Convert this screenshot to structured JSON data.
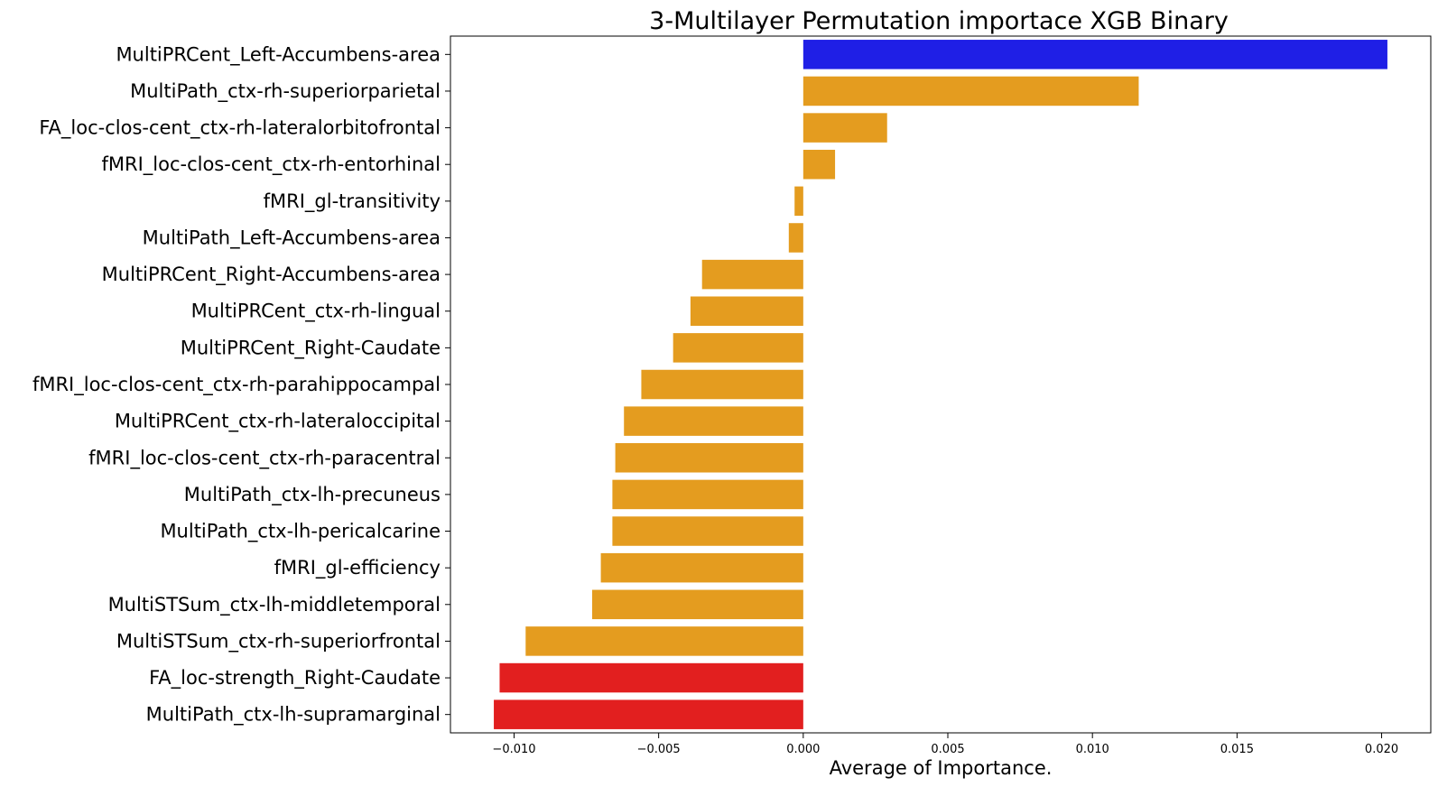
{
  "chart_data": {
    "type": "bar",
    "orientation": "horizontal",
    "title": "3-Multilayer Permutation importace XGB Binary",
    "xlabel": "Average of Importance.",
    "ylabel": "",
    "xlim": [
      -0.0122,
      0.0217
    ],
    "grid": false,
    "xticks": [
      -0.01,
      -0.005,
      0.0,
      0.005,
      0.01,
      0.015,
      0.02
    ],
    "xtick_labels": [
      "−0.010",
      "−0.005",
      "0.000",
      "0.005",
      "0.010",
      "0.015",
      "0.020"
    ],
    "colors": {
      "top": "#1f1fe6",
      "default": "#e49c1f",
      "bottom": "#e21f1f"
    },
    "categories": [
      "MultiPRCent_Left-Accumbens-area",
      "MultiPath_ctx-rh-superiorparietal",
      "FA_loc-clos-cent_ctx-rh-lateralorbitofrontal",
      "fMRI_loc-clos-cent_ctx-rh-entorhinal",
      "fMRI_gl-transitivity",
      "MultiPath_Left-Accumbens-area",
      "MultiPRCent_Right-Accumbens-area",
      "MultiPRCent_ctx-rh-lingual",
      "MultiPRCent_Right-Caudate",
      "fMRI_loc-clos-cent_ctx-rh-parahippocampal",
      "MultiPRCent_ctx-rh-lateraloccipital",
      "fMRI_loc-clos-cent_ctx-rh-paracentral",
      "MultiPath_ctx-lh-precuneus",
      "MultiPath_ctx-lh-pericalcarine",
      "fMRI_gl-efficiency",
      "MultiSTSum_ctx-lh-middletemporal",
      "MultiSTSum_ctx-rh-superiorfrontal",
      "FA_loc-strength_Right-Caudate",
      "MultiPath_ctx-lh-supramarginal"
    ],
    "values": [
      0.0202,
      0.0116,
      0.0029,
      0.0011,
      -0.0003,
      -0.0005,
      -0.0035,
      -0.0039,
      -0.0045,
      -0.0056,
      -0.0062,
      -0.0065,
      -0.0066,
      -0.0066,
      -0.007,
      -0.0073,
      -0.0096,
      -0.0105,
      -0.0107
    ],
    "bar_colors": [
      "top",
      "default",
      "default",
      "default",
      "default",
      "default",
      "default",
      "default",
      "default",
      "default",
      "default",
      "default",
      "default",
      "default",
      "default",
      "default",
      "default",
      "bottom",
      "bottom"
    ]
  }
}
